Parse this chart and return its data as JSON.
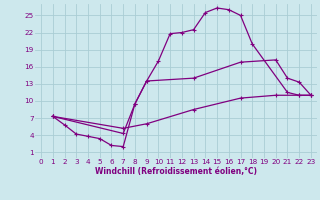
{
  "xlabel": "Windchill (Refroidissement éolien,°C)",
  "bg_color": "#cde8ed",
  "line_color": "#800080",
  "grid_color": "#aacdd4",
  "xlim": [
    -0.5,
    23.5
  ],
  "ylim": [
    0,
    27
  ],
  "yticks": [
    1,
    4,
    7,
    10,
    13,
    16,
    19,
    22,
    25
  ],
  "xticks": [
    0,
    1,
    2,
    3,
    4,
    5,
    6,
    7,
    8,
    9,
    10,
    11,
    12,
    13,
    14,
    15,
    16,
    17,
    18,
    19,
    20,
    21,
    22,
    23
  ],
  "series1": [
    [
      1,
      7.3
    ],
    [
      2,
      5.8
    ],
    [
      3,
      4.2
    ],
    [
      4,
      3.8
    ],
    [
      5,
      3.4
    ],
    [
      6,
      2.2
    ],
    [
      7,
      2.0
    ],
    [
      8,
      9.5
    ],
    [
      9,
      13.5
    ],
    [
      10,
      17.0
    ],
    [
      11,
      21.8
    ],
    [
      12,
      22.0
    ],
    [
      13,
      22.5
    ],
    [
      14,
      25.5
    ],
    [
      15,
      26.3
    ],
    [
      16,
      26.0
    ],
    [
      17,
      25.0
    ],
    [
      18,
      20.0
    ],
    [
      21,
      11.5
    ],
    [
      22,
      11.0
    ],
    [
      23,
      11.0
    ]
  ],
  "series2": [
    [
      1,
      7.3
    ],
    [
      7,
      4.3
    ],
    [
      8,
      9.5
    ],
    [
      9,
      13.5
    ],
    [
      13,
      14.0
    ],
    [
      17,
      16.8
    ],
    [
      20,
      17.2
    ],
    [
      21,
      14.0
    ],
    [
      22,
      13.3
    ],
    [
      23,
      11.0
    ]
  ],
  "series3": [
    [
      1,
      7.3
    ],
    [
      7,
      5.2
    ],
    [
      9,
      6.0
    ],
    [
      13,
      8.5
    ],
    [
      17,
      10.5
    ],
    [
      20,
      11.0
    ],
    [
      22,
      11.0
    ],
    [
      23,
      11.0
    ]
  ]
}
